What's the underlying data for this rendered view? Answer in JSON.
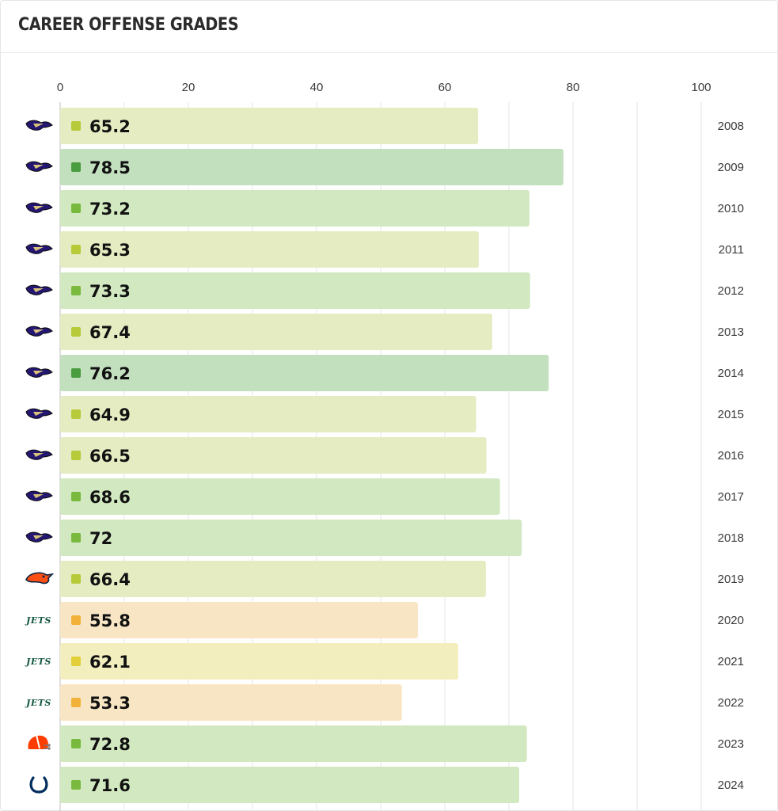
{
  "header": {
    "title": "CAREER OFFENSE GRADES"
  },
  "colors": {
    "grid": "#e5e5e5",
    "axis": "#bdbdbd",
    "high": {
      "bar": "#c2dfbe",
      "dot": "#4a9d3f"
    },
    "good": {
      "bar": "#d1e8c0",
      "dot": "#79b93d"
    },
    "average": {
      "bar": "#e5ecc2",
      "dot": "#b7ca3a"
    },
    "below": {
      "bar": "#f3eebe",
      "dot": "#e3cf3a"
    },
    "low": {
      "bar": "#f8e5c4",
      "dot": "#f2b23a"
    }
  },
  "chart_data": {
    "type": "bar",
    "orientation": "horizontal",
    "title": "CAREER OFFENSE GRADES",
    "xlim": [
      0,
      100
    ],
    "xticks": [
      0,
      20,
      40,
      60,
      80,
      100
    ],
    "grid": true,
    "categories": [
      "2008",
      "2009",
      "2010",
      "2011",
      "2012",
      "2013",
      "2014",
      "2015",
      "2016",
      "2017",
      "2018",
      "2019",
      "2020",
      "2021",
      "2022",
      "2023",
      "2024"
    ],
    "values": [
      65.2,
      78.5,
      73.2,
      65.3,
      73.3,
      67.4,
      76.2,
      64.9,
      66.5,
      68.6,
      72,
      66.4,
      55.8,
      62.1,
      53.3,
      72.8,
      71.6
    ],
    "value_labels": [
      "65.2",
      "78.5",
      "73.2",
      "65.3",
      "73.3",
      "67.4",
      "76.2",
      "64.9",
      "66.5",
      "68.6",
      "72",
      "66.4",
      "55.8",
      "62.1",
      "53.3",
      "72.8",
      "71.6"
    ],
    "grade_tier": [
      "average",
      "high",
      "good",
      "average",
      "good",
      "average",
      "high",
      "average",
      "average",
      "good",
      "good",
      "average",
      "low",
      "below",
      "low",
      "good",
      "good"
    ],
    "team_icons": [
      "ravens-logo-icon",
      "ravens-logo-icon",
      "ravens-logo-icon",
      "ravens-logo-icon",
      "ravens-logo-icon",
      "ravens-logo-icon",
      "ravens-logo-icon",
      "ravens-logo-icon",
      "ravens-logo-icon",
      "ravens-logo-icon",
      "ravens-logo-icon",
      "broncos-logo-icon",
      "jets-logo-icon",
      "jets-logo-icon",
      "jets-logo-icon",
      "browns-helmet-icon",
      "colts-horseshoe-icon"
    ]
  }
}
